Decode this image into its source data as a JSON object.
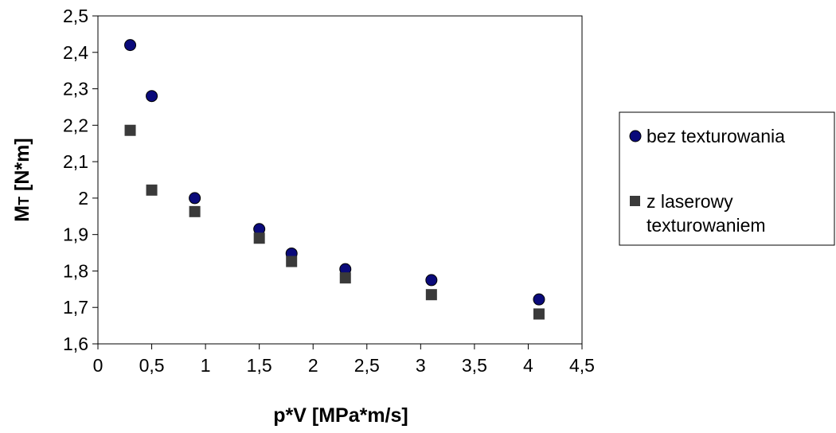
{
  "chart_data": {
    "type": "scatter",
    "xlabel": "p*V [MPa*m/s]",
    "ylabel_main": "M",
    "ylabel_sub": "T",
    "ylabel_unit": " [N*m]",
    "xlim": [
      0,
      4.5
    ],
    "ylim": [
      1.6,
      2.5
    ],
    "x_ticks": [
      "0",
      "0,5",
      "1",
      "1,5",
      "2",
      "2,5",
      "3",
      "3,5",
      "4",
      "4,5"
    ],
    "y_ticks": [
      "1,6",
      "1,7",
      "1,8",
      "1,9",
      "2",
      "2,1",
      "2,2",
      "2,3",
      "2,4",
      "2,5"
    ],
    "grid": false,
    "legend_position": "right",
    "series": [
      {
        "name": "bez texturowania",
        "marker": "circle",
        "color": "#0a0a7a",
        "x": [
          0.3,
          0.5,
          0.9,
          1.5,
          1.8,
          2.3,
          3.1,
          4.1
        ],
        "y": [
          2.42,
          2.28,
          2.0,
          1.915,
          1.848,
          1.805,
          1.775,
          1.722
        ]
      },
      {
        "name_lines": [
          "z laserowy",
          "texturowaniem"
        ],
        "marker": "square",
        "color": "#3a3a3a",
        "x": [
          0.3,
          0.5,
          0.9,
          1.5,
          1.8,
          2.3,
          3.1,
          4.1
        ],
        "y": [
          2.186,
          2.022,
          1.963,
          1.89,
          1.826,
          1.781,
          1.735,
          1.682
        ]
      }
    ]
  }
}
